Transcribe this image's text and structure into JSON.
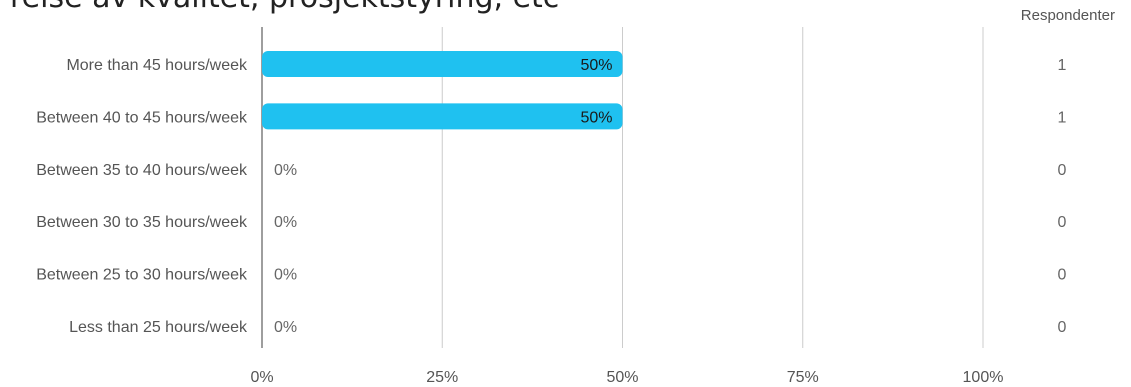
{
  "clipped_title": "relse av kvalitet, prosjektstyring, etc",
  "chart_data": {
    "type": "bar",
    "orientation": "horizontal",
    "categories": [
      "More than 45 hours/week",
      "Between 40 to 45 hours/week",
      "Between 35 to 40 hours/week",
      "Between 30 to 35 hours/week",
      "Between 25 to 30 hours/week",
      "Less than 25 hours/week"
    ],
    "values": [
      50,
      50,
      0,
      0,
      0,
      0
    ],
    "value_labels": [
      "50%",
      "50%",
      "0%",
      "0%",
      "0%",
      "0%"
    ],
    "counts": [
      1,
      1,
      0,
      0,
      0,
      0
    ],
    "count_header": "Respondenter",
    "xlim": [
      0,
      100
    ],
    "x_ticks": [
      "0%",
      "25%",
      "50%",
      "75%",
      "100%"
    ],
    "grid": true,
    "bar_color": "#1fc1f0"
  }
}
